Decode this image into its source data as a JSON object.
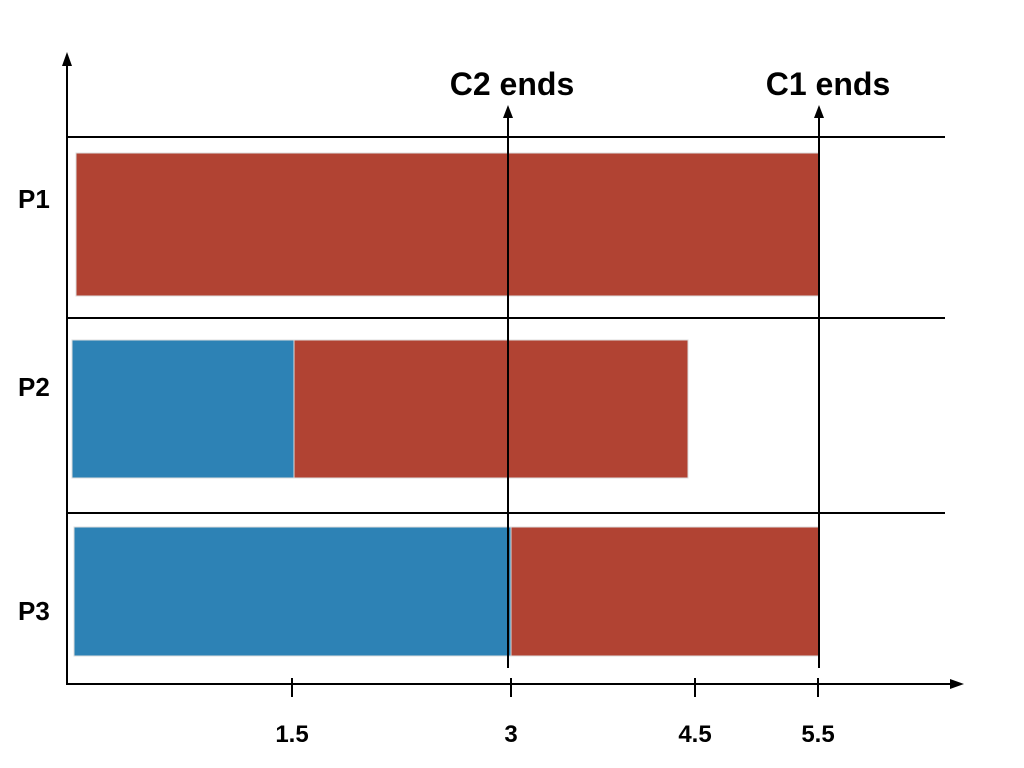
{
  "rows": [
    {
      "label": "P1",
      "segments": [
        {
          "start": 0,
          "end": 5.5,
          "color": "#b14333"
        }
      ]
    },
    {
      "label": "P2",
      "segments": [
        {
          "start": 0,
          "end": 1.5,
          "color": "#2d82b5"
        },
        {
          "start": 1.5,
          "end": 4.5,
          "color": "#b14333"
        }
      ]
    },
    {
      "label": "P3",
      "segments": [
        {
          "start": 0,
          "end": 3,
          "color": "#2d82b5"
        },
        {
          "start": 3,
          "end": 5.5,
          "color": "#b14333"
        }
      ]
    }
  ],
  "x_ticks": [
    {
      "value": 1.5,
      "label": "1.5"
    },
    {
      "value": 3,
      "label": "3"
    },
    {
      "value": 4.5,
      "label": "4.5"
    },
    {
      "value": 5.5,
      "label": "5.5"
    }
  ],
  "markers": [
    {
      "value": 3,
      "label": "C2 ends"
    },
    {
      "value": 5.5,
      "label": "C1 ends"
    }
  ],
  "colors": {
    "red": "#b14333",
    "blue": "#2d82b5",
    "axis": "#000000"
  }
}
